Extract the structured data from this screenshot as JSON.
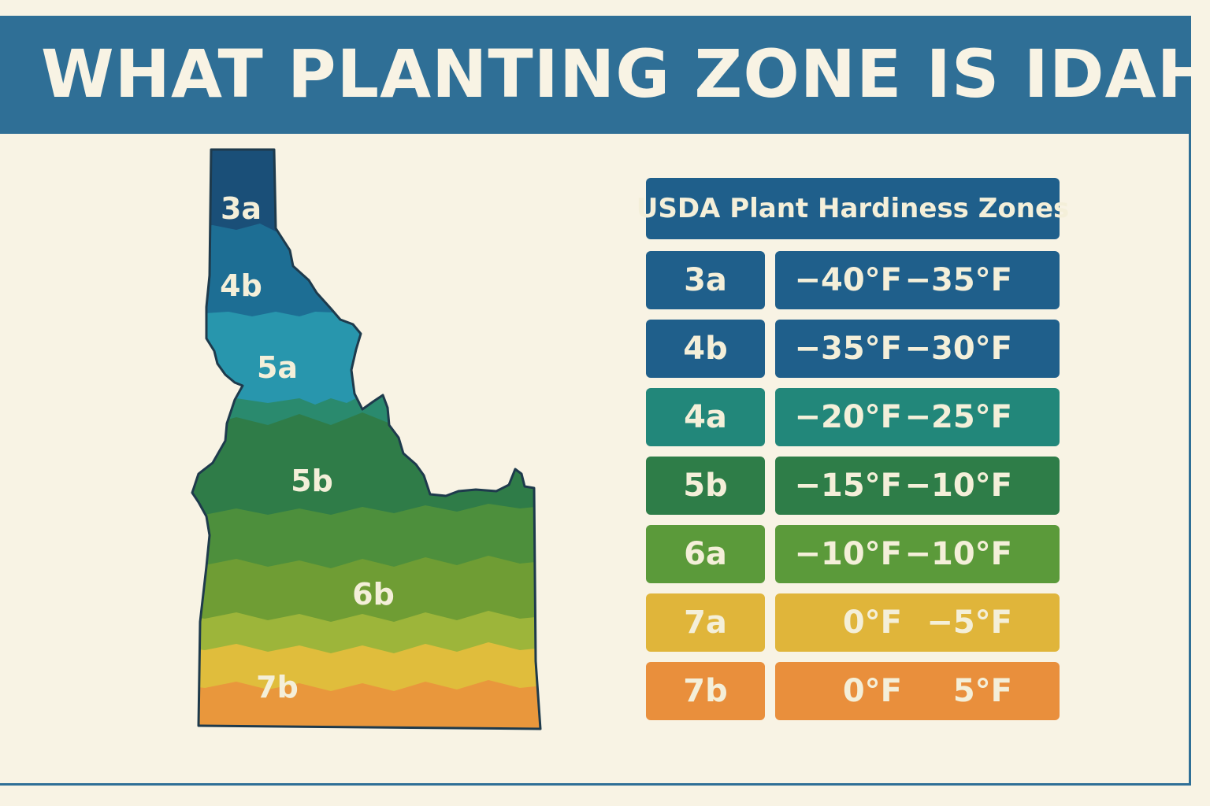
{
  "header": {
    "title": "WHAT PLANTING ZONE IS IDAHO"
  },
  "map": {
    "labels": [
      "3a",
      "4b",
      "5a",
      "5b",
      "6b",
      "7b"
    ],
    "colors": {
      "outline": "#1e3a4c",
      "zone_3a": "#1a4f78",
      "zone_4b": "#1d6e94",
      "zone_5a": "#2896ad",
      "zone_transition": "#2a8a6e",
      "zone_5b": "#2f7c48",
      "zone_6a": "#4d8f3c",
      "zone_6b": "#6f9d34",
      "zone_6b_light": "#9db53a",
      "zone_7a": "#e0bd3c",
      "zone_7b": "#e9973c"
    }
  },
  "legend": {
    "title": "USDA Plant Hardiness Zones",
    "rows": [
      {
        "zone": "3a",
        "low": "−40°F",
        "high": "−35°F",
        "color": "#1f5f8b"
      },
      {
        "zone": "4b",
        "low": "−35°F",
        "high": "−30°F",
        "color": "#1f5f8b"
      },
      {
        "zone": "4a",
        "low": "−20°F",
        "high": "−25°F",
        "color": "#22877a"
      },
      {
        "zone": "5b",
        "low": "−15°F",
        "high": "−10°F",
        "color": "#2e7d48"
      },
      {
        "zone": "6a",
        "low": "−10°F",
        "high": "−10°F",
        "color": "#5b9a3a"
      },
      {
        "zone": "7a",
        "low": "0°F",
        "high": "−5°F",
        "color": "#e0b53a"
      },
      {
        "zone": "7b",
        "low": "0°F",
        "high": "5°F",
        "color": "#e98f3c"
      }
    ]
  }
}
